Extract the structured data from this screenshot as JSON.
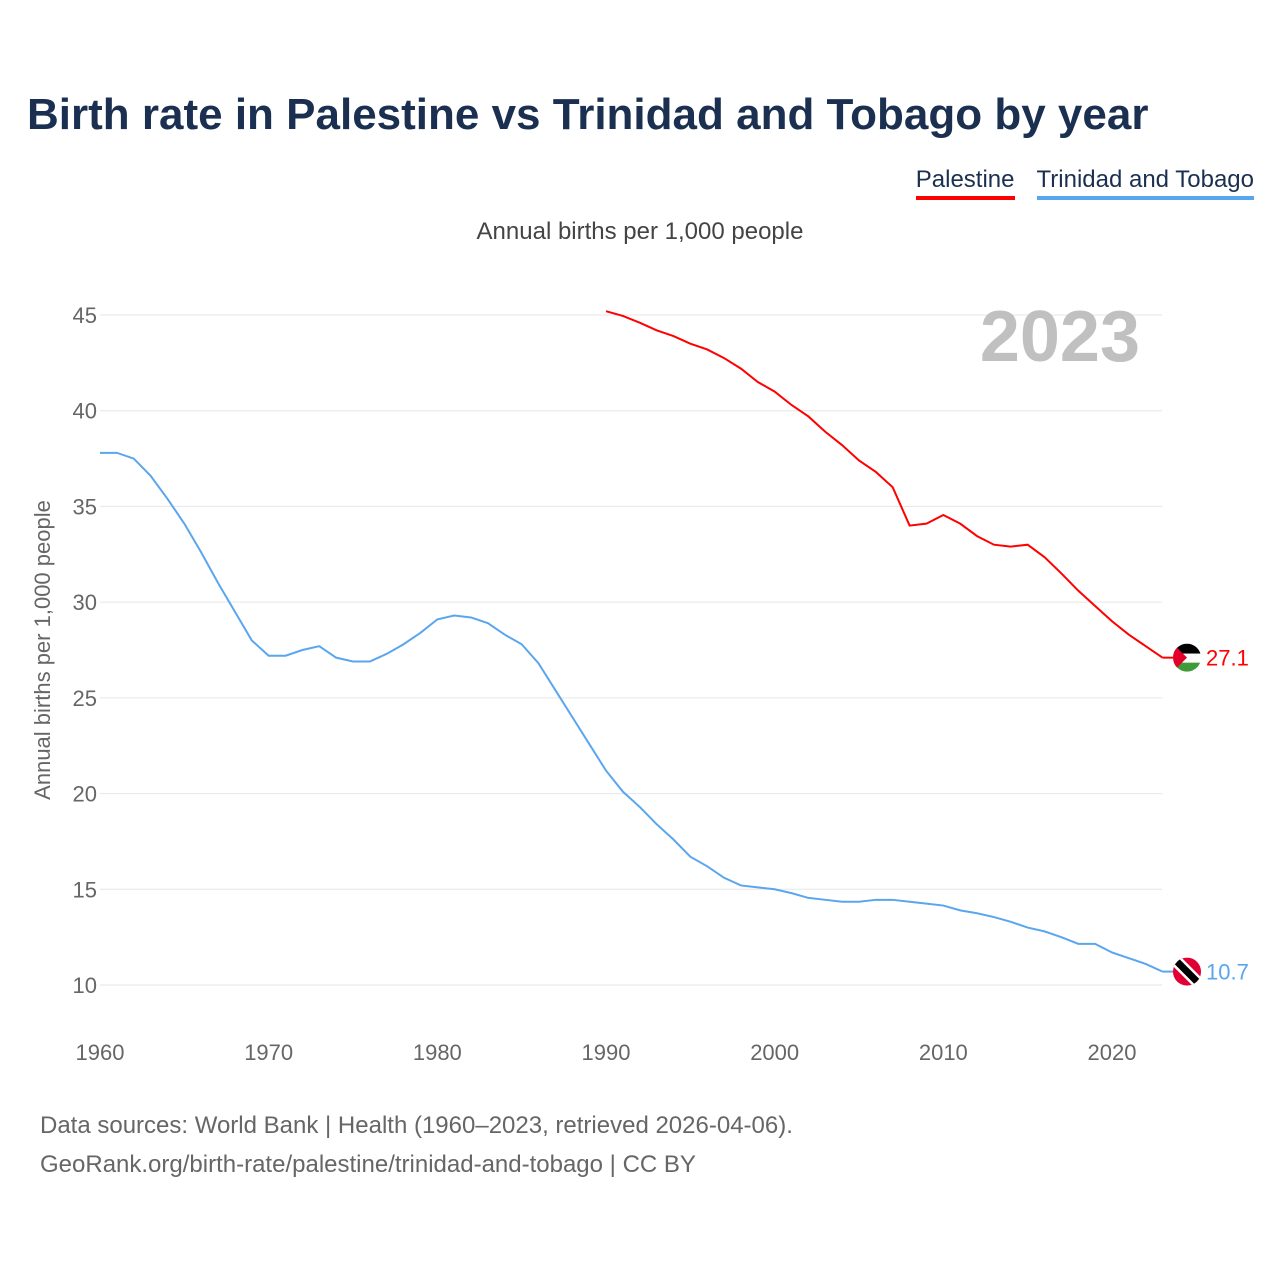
{
  "title": "Birth rate in Palestine vs Trinidad and Tobago by year",
  "subtitle": "Annual births per 1,000 people",
  "source_line1": "Data sources: World Bank | Health (1960–2023, retrieved 2026-04-06).",
  "source_line2": "GeoRank.org/birth-rate/palestine/trinidad-and-tobago | CC BY",
  "chart_data": {
    "type": "line",
    "title": "Birth rate in Palestine vs Trinidad and Tobago by year",
    "ylabel": "Annual births per 1,000 people",
    "xlabel": "",
    "year_label": "2023",
    "xlim": [
      1960,
      2023
    ],
    "ylim": [
      10,
      45
    ],
    "xticks": [
      1960,
      1970,
      1980,
      1990,
      2000,
      2010,
      2020
    ],
    "yticks": [
      10,
      15,
      20,
      25,
      30,
      35,
      40,
      45
    ],
    "grid": true,
    "legend": "top-right",
    "series": [
      {
        "name": "Palestine",
        "color": "#ff0000",
        "end_label": "27.1",
        "x_start": 1990,
        "values": [
          45.2,
          44.95,
          44.6,
          44.2,
          43.9,
          43.5,
          43.2,
          42.75,
          42.2,
          41.5,
          41.0,
          40.3,
          39.7,
          38.9,
          38.2,
          37.4,
          36.8,
          36.0,
          34.0,
          34.1,
          34.55,
          34.1,
          33.45,
          33.0,
          32.9,
          33.0,
          32.35,
          31.5,
          30.6,
          29.8,
          29.0,
          28.3,
          27.7,
          27.1
        ]
      },
      {
        "name": "Trinidad and Tobago",
        "color": "#5aa6ee",
        "end_label": "10.7",
        "x_start": 1960,
        "values": [
          37.8,
          37.8,
          37.5,
          36.6,
          35.4,
          34.1,
          32.6,
          31.0,
          29.5,
          28.0,
          27.2,
          27.2,
          27.5,
          27.7,
          27.1,
          26.9,
          26.9,
          27.3,
          27.8,
          28.4,
          29.1,
          29.3,
          29.2,
          28.9,
          28.3,
          27.8,
          26.8,
          25.4,
          24.0,
          22.6,
          21.2,
          20.1,
          19.3,
          18.4,
          17.6,
          16.7,
          16.2,
          15.6,
          15.2,
          15.1,
          15.0,
          14.8,
          14.55,
          14.45,
          14.35,
          14.35,
          14.45,
          14.45,
          14.35,
          14.25,
          14.15,
          13.9,
          13.75,
          13.55,
          13.3,
          13.0,
          12.8,
          12.5,
          12.15,
          12.15,
          11.7,
          11.4,
          11.1,
          10.7
        ]
      }
    ]
  }
}
